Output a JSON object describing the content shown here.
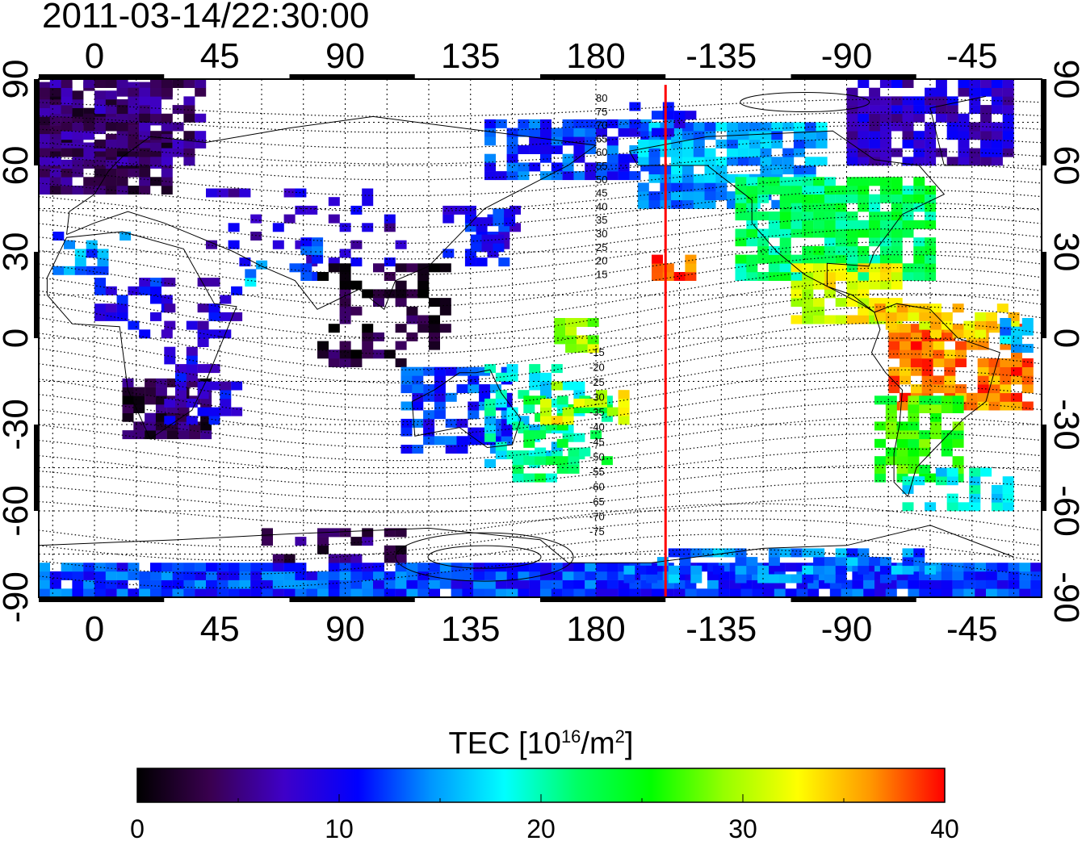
{
  "title": "2011-03-14/22:30:00",
  "map": {
    "top_axis_labels": [
      "0",
      "45",
      "90",
      "135",
      "180",
      "-135",
      "-90",
      "-45"
    ],
    "bottom_axis_labels": [
      "0",
      "45",
      "90",
      "135",
      "180",
      "-135",
      "-90",
      "-45"
    ],
    "left_axis_labels": [
      "90",
      "60",
      "30",
      "0",
      "-30",
      "-60",
      "-90"
    ],
    "right_axis_labels": [
      "90",
      "60",
      "30",
      "0",
      "-30",
      "-60",
      "-90"
    ],
    "x_range_deg_east": [
      -20,
      340
    ],
    "y_range_deg": [
      -90,
      90
    ],
    "terminator_longitude": "-155",
    "terminator_color": "#ff0000",
    "contour_labels_north": [
      "80",
      "75",
      "70",
      "65",
      "60",
      "55",
      "50",
      "45",
      "40",
      "35",
      "30",
      "25",
      "20",
      "15"
    ],
    "contour_labels_south": [
      "15",
      "20",
      "25",
      "30",
      "35",
      "40",
      "45",
      "50",
      "55",
      "60",
      "65",
      "70",
      "75"
    ]
  },
  "colorbar": {
    "label_text": "TEC  [10",
    "label_sup": "16",
    "label_unit": "/m",
    "label_sup2": "2",
    "label_end": "]",
    "min": 0,
    "max": 40,
    "tick_labels": [
      "0",
      "10",
      "20",
      "30",
      "40"
    ],
    "colormap_stops": [
      "#000000",
      "#3a0050",
      "#3f00c8",
      "#0000ff",
      "#0096ff",
      "#00ffff",
      "#00ff64",
      "#00ff00",
      "#96ff00",
      "#ffff00",
      "#ff9600",
      "#ff0000"
    ]
  }
}
